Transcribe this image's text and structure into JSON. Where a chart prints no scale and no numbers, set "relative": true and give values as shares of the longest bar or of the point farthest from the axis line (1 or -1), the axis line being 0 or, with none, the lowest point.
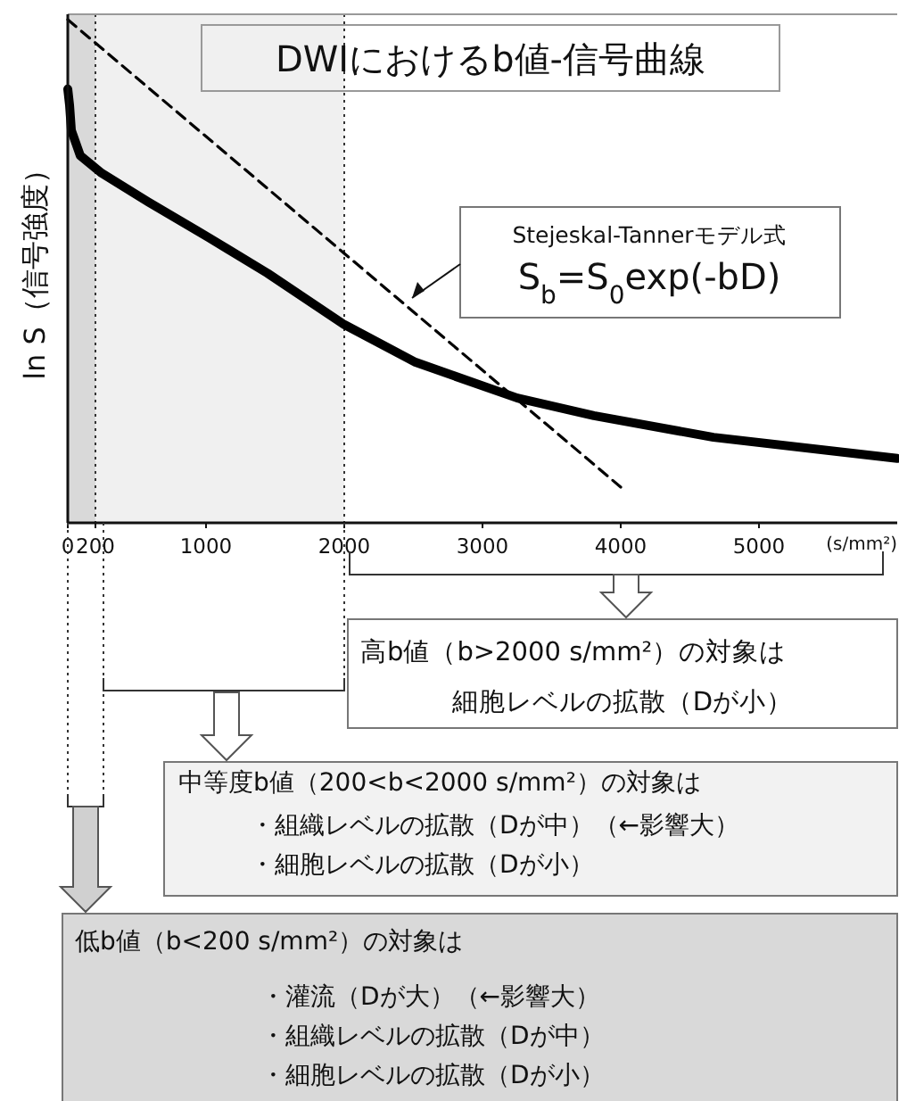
{
  "chart_data": {
    "type": "line",
    "title": "DWIにおけるb値-信号曲線",
    "ylabel": "ln S（信号強度）",
    "xlabel": "(s/mm²)",
    "relative": true,
    "xlim": [
      0,
      6000
    ],
    "xticks": [
      0,
      200,
      1000,
      2000,
      3000,
      4000,
      5000
    ],
    "legend": false,
    "bands": [
      {
        "axis": "x",
        "from": 0,
        "to": 200,
        "color": "#d9d9d9"
      },
      {
        "axis": "x",
        "from": 200,
        "to": 2000,
        "color": "#f0f0f0"
      }
    ],
    "ref_lines": [
      {
        "axis": "x",
        "value": 200,
        "line_style": "dotted",
        "color": "#333333"
      },
      {
        "axis": "x",
        "value": 2000,
        "line_style": "dotted",
        "color": "#333333"
      }
    ],
    "series": [
      {
        "type": "line",
        "color": "#000000",
        "line_style": "solid",
        "x": [
          0,
          13,
          26,
          90,
          245,
          581,
          1019,
          1445,
          2000,
          2516,
          3252,
          3806,
          4671,
          6000
        ],
        "values": [
          0.862,
          0.83,
          0.78,
          0.73,
          0.695,
          0.638,
          0.567,
          0.496,
          0.394,
          0.319,
          0.248,
          0.213,
          0.17,
          0.128
        ]
      },
      {
        "type": "line",
        "color": "#000000",
        "line_style": "dashed",
        "x": [
          0,
          4000
        ],
        "values": [
          1.0,
          0.071
        ]
      }
    ],
    "annotations": [
      "Stejeskal-Tannerモデル式",
      "S$_{b}$=S$_{0}$exp(-bD)",
      "高b値（b>2000 s/mm²）の対象は",
      "細胞レベルの拡散（Dが小）",
      "中等度b値（200<b<2000 s/mm²）の対象は",
      "・組織レベルの拡散（Dが中）（←影響大）",
      "・細胞レベルの拡散（Dが小）",
      "低b値（b<200 s/mm²）の対象は",
      "・灌流（Dが大）（←影響大）",
      "・組織レベルの拡散（Dが中）",
      "・細胞レベルの拡散（Dが小）"
    ]
  }
}
